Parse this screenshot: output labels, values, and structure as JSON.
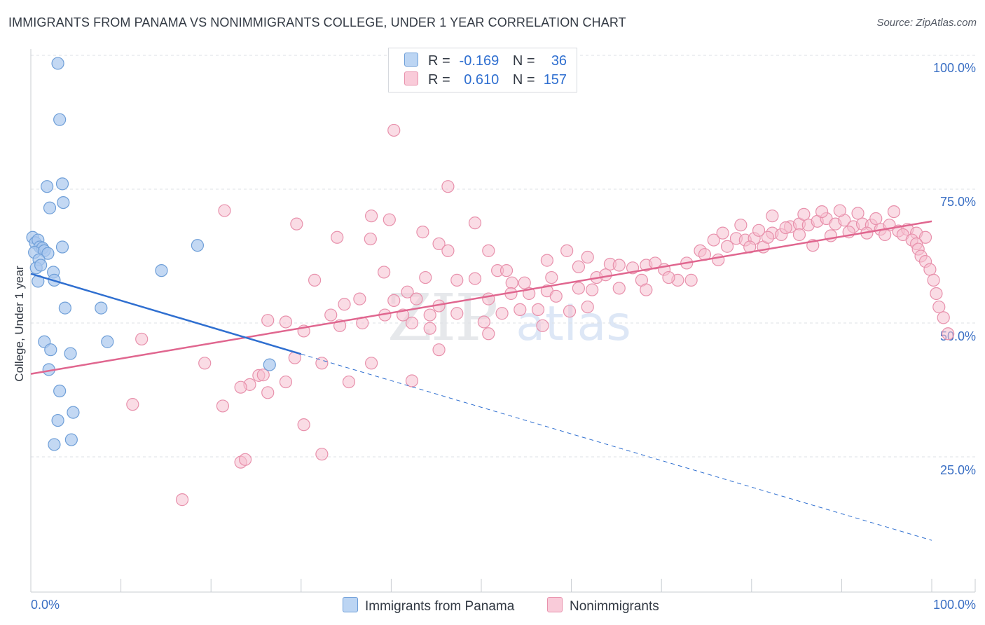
{
  "title": "IMMIGRANTS FROM PANAMA VS NONIMMIGRANTS COLLEGE, UNDER 1 YEAR CORRELATION CHART",
  "source": "Source: ZipAtlas.com",
  "watermark": {
    "zip": "ZIP",
    "atlas": "atlas"
  },
  "legend": {
    "rows": [
      {
        "r_label": "R =",
        "r_value": "-0.169",
        "n_label": "N =",
        "n_value": "36"
      },
      {
        "r_label": "R =",
        "r_value": "0.610",
        "n_label": "N =",
        "n_value": "157"
      }
    ]
  },
  "colors": {
    "blue_fill": "#a9c8ee",
    "blue_stroke": "#6f9fd8",
    "blue_line": "#2f6fd0",
    "pink_fill": "#f6bfd0",
    "pink_stroke": "#e891ac",
    "pink_line": "#e0668f",
    "axis_label": "#3a6fc4",
    "grid": "#dde1e6"
  },
  "chart_data": {
    "type": "scatter",
    "title": "IMMIGRANTS FROM PANAMA VS NONIMMIGRANTS COLLEGE, UNDER 1 YEAR CORRELATION CHART",
    "xlabel": "",
    "ylabel": "College, Under 1 year",
    "xlim": [
      0,
      100
    ],
    "ylim": [
      0,
      104
    ],
    "x_tick_labels": [
      "0.0%",
      "100.0%"
    ],
    "y_tick_labels": [
      "25.0%",
      "50.0%",
      "75.0%",
      "100.0%"
    ],
    "y_ticks": [
      25,
      50,
      75,
      100
    ],
    "legend_position": "bottom-center",
    "series": [
      {
        "name": "Immigrants from Panama",
        "color": "blue",
        "points": [
          [
            3,
            98.5
          ],
          [
            3.2,
            88
          ],
          [
            3.5,
            76
          ],
          [
            1.8,
            75.5
          ],
          [
            2.1,
            71.5
          ],
          [
            3.6,
            72.5
          ],
          [
            0.2,
            66
          ],
          [
            0.5,
            65
          ],
          [
            0.8,
            65.5
          ],
          [
            1,
            64.2
          ],
          [
            1.3,
            64
          ],
          [
            0.4,
            63.2
          ],
          [
            1.5,
            63.5
          ],
          [
            1.9,
            63
          ],
          [
            3.5,
            64.2
          ],
          [
            0.9,
            61.8
          ],
          [
            0.6,
            60.3
          ],
          [
            1.1,
            60.8
          ],
          [
            2.5,
            59.5
          ],
          [
            2.6,
            58
          ],
          [
            0.8,
            57.8
          ],
          [
            18.5,
            64.5
          ],
          [
            14.5,
            59.8
          ],
          [
            3.8,
            52.8
          ],
          [
            7.8,
            52.8
          ],
          [
            1.5,
            46.5
          ],
          [
            8.5,
            46.5
          ],
          [
            2.2,
            45
          ],
          [
            4.4,
            44.3
          ],
          [
            2,
            41.3
          ],
          [
            3.2,
            37.3
          ],
          [
            3,
            31.8
          ],
          [
            4.7,
            33.3
          ],
          [
            2.6,
            27.3
          ],
          [
            4.5,
            28.2
          ],
          [
            26.5,
            42.2
          ]
        ],
        "trend": {
          "x": [
            0,
            30
          ],
          "y": [
            59.2,
            44.2
          ],
          "dashed_extension": {
            "x": [
              30,
              100
            ],
            "y": [
              44.2,
              9.4
            ]
          }
        }
      },
      {
        "name": "Nonimmigrants",
        "color": "pink",
        "points": [
          [
            40.3,
            86
          ],
          [
            46.3,
            75.5
          ],
          [
            21.5,
            71
          ],
          [
            37.8,
            70
          ],
          [
            39.8,
            69.3
          ],
          [
            29.5,
            68.5
          ],
          [
            49.3,
            68.7
          ],
          [
            43.5,
            67
          ],
          [
            34,
            66
          ],
          [
            37.7,
            65.7
          ],
          [
            45.3,
            64.8
          ],
          [
            46.3,
            63.5
          ],
          [
            50.8,
            63.5
          ],
          [
            59.5,
            63.5
          ],
          [
            57.3,
            61.7
          ],
          [
            61.8,
            62.3
          ],
          [
            39.2,
            59.5
          ],
          [
            43.8,
            58.5
          ],
          [
            31.5,
            58
          ],
          [
            47.3,
            58
          ],
          [
            49.3,
            58.3
          ],
          [
            51.8,
            59.8
          ],
          [
            52.8,
            59.8
          ],
          [
            53.4,
            57.5
          ],
          [
            54.8,
            57.5
          ],
          [
            57.8,
            58.5
          ],
          [
            60.8,
            60.5
          ],
          [
            62.8,
            58.5
          ],
          [
            63.8,
            59
          ],
          [
            64.3,
            61
          ],
          [
            65.3,
            60.8
          ],
          [
            66.8,
            60.3
          ],
          [
            67.8,
            58
          ],
          [
            68.3,
            60.8
          ],
          [
            69.3,
            61.2
          ],
          [
            70.3,
            60
          ],
          [
            71.8,
            58
          ],
          [
            73.3,
            58
          ],
          [
            62.3,
            56.2
          ],
          [
            65.3,
            56.5
          ],
          [
            68.3,
            56.2
          ],
          [
            70.8,
            58.5
          ],
          [
            72.8,
            61.2
          ],
          [
            74.3,
            63.5
          ],
          [
            74.8,
            62.8
          ],
          [
            76.3,
            61.8
          ],
          [
            75.8,
            65.5
          ],
          [
            77.3,
            64.3
          ],
          [
            78.3,
            65.8
          ],
          [
            79.3,
            65.5
          ],
          [
            80.3,
            65.8
          ],
          [
            81.3,
            64.2
          ],
          [
            82.3,
            66.8
          ],
          [
            83.3,
            66.5
          ],
          [
            79.8,
            64.2
          ],
          [
            81.8,
            66
          ],
          [
            84.3,
            68
          ],
          [
            85.3,
            68.5
          ],
          [
            86.3,
            68.3
          ],
          [
            87.3,
            69
          ],
          [
            88.3,
            69.5
          ],
          [
            89.3,
            68.5
          ],
          [
            90.3,
            69.2
          ],
          [
            91.3,
            68
          ],
          [
            92.3,
            68.5
          ],
          [
            93.3,
            68.3
          ],
          [
            94.3,
            67.5
          ],
          [
            95.3,
            68.3
          ],
          [
            96.3,
            67.2
          ],
          [
            97.3,
            67.5
          ],
          [
            98.3,
            66.8
          ],
          [
            99.3,
            66
          ],
          [
            82.3,
            70
          ],
          [
            85.8,
            70.3
          ],
          [
            87.8,
            70.8
          ],
          [
            89.8,
            71
          ],
          [
            91.8,
            70.5
          ],
          [
            93.8,
            69.5
          ],
          [
            95.8,
            70.8
          ],
          [
            86.8,
            64.5
          ],
          [
            88.8,
            66.3
          ],
          [
            90.8,
            67
          ],
          [
            92.8,
            66.8
          ],
          [
            94.8,
            66.5
          ],
          [
            96.8,
            66.5
          ],
          [
            97.8,
            65.5
          ],
          [
            98.3,
            64.8
          ],
          [
            98.5,
            63.8
          ],
          [
            98.8,
            62.5
          ],
          [
            99.3,
            61.5
          ],
          [
            99.8,
            60
          ],
          [
            100.2,
            58
          ],
          [
            100.5,
            55.5
          ],
          [
            100.8,
            53
          ],
          [
            101.3,
            51
          ],
          [
            101.8,
            48
          ],
          [
            76.8,
            66.8
          ],
          [
            80.8,
            67.3
          ],
          [
            78.8,
            68.3
          ],
          [
            83.8,
            67.8
          ],
          [
            85.3,
            66.5
          ],
          [
            34.8,
            53.5
          ],
          [
            36.5,
            54.5
          ],
          [
            40.3,
            54.2
          ],
          [
            41.8,
            55.8
          ],
          [
            42.8,
            54.5
          ],
          [
            45.3,
            53.2
          ],
          [
            50.8,
            54.5
          ],
          [
            53.3,
            55.5
          ],
          [
            55.3,
            55.5
          ],
          [
            57.3,
            56
          ],
          [
            58.3,
            55
          ],
          [
            60.8,
            56.5
          ],
          [
            41.3,
            51.5
          ],
          [
            44.3,
            51.5
          ],
          [
            47.3,
            51.8
          ],
          [
            50.3,
            50.2
          ],
          [
            52.3,
            51.8
          ],
          [
            54.3,
            52.5
          ],
          [
            56.3,
            52.5
          ],
          [
            56.8,
            49.5
          ],
          [
            59.8,
            52.2
          ],
          [
            61.8,
            53
          ],
          [
            33.3,
            51.5
          ],
          [
            36.8,
            50
          ],
          [
            39.3,
            51.5
          ],
          [
            42.3,
            50
          ],
          [
            44.3,
            49
          ],
          [
            34.3,
            49.5
          ],
          [
            26.3,
            50.5
          ],
          [
            28.3,
            50.2
          ],
          [
            30.3,
            48.5
          ],
          [
            50.8,
            48
          ],
          [
            45.3,
            45
          ],
          [
            12.3,
            47
          ],
          [
            19.3,
            42.5
          ],
          [
            32.3,
            42.5
          ],
          [
            37.8,
            42.5
          ],
          [
            29.3,
            43.5
          ],
          [
            25.3,
            40.2
          ],
          [
            25.8,
            40.3
          ],
          [
            28.3,
            39
          ],
          [
            24.3,
            38.5
          ],
          [
            23.3,
            38
          ],
          [
            26.3,
            37
          ],
          [
            35.3,
            39
          ],
          [
            42.3,
            39.2
          ],
          [
            11.3,
            34.8
          ],
          [
            21.3,
            34.5
          ],
          [
            30.3,
            31
          ],
          [
            32.3,
            25.5
          ],
          [
            23.3,
            24
          ],
          [
            23.8,
            24.5
          ],
          [
            16.8,
            17
          ]
        ],
        "trend": {
          "x": [
            0,
            100
          ],
          "y": [
            40.5,
            69
          ]
        }
      }
    ]
  },
  "bottom_legend": [
    {
      "label": "Immigrants from Panama"
    },
    {
      "label": "Nonimmigrants"
    }
  ]
}
